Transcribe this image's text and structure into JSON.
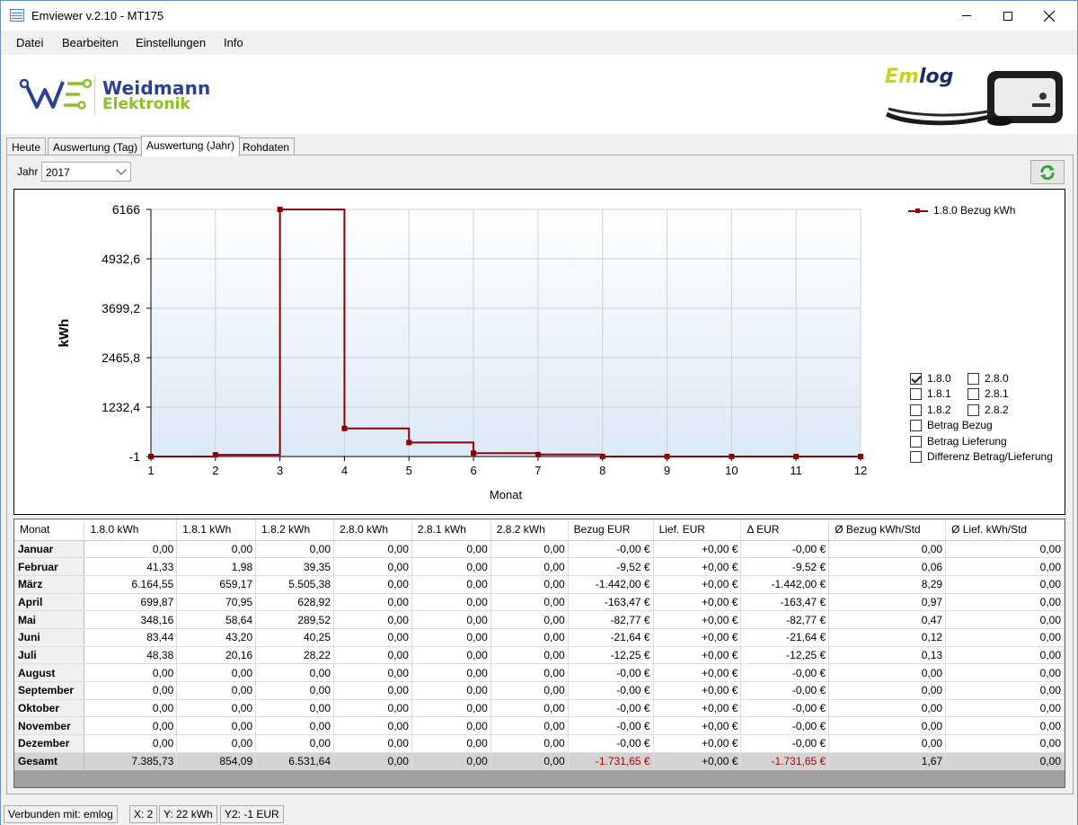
{
  "window": {
    "title": "Emviewer v.2.10 - MT175"
  },
  "menu": [
    "Datei",
    "Bearbeiten",
    "Einstellungen",
    "Info"
  ],
  "brand": {
    "line1": "Weidmann",
    "line2": "Elektronik",
    "emlog_em": "Em",
    "emlog_log": "log"
  },
  "tabs": [
    "Heute",
    "Auswertung (Tag)",
    "Auswertung (Jahr)",
    "Rohdaten"
  ],
  "active_tab": "Auswertung (Jahr)",
  "filter": {
    "year_label": "Jahr",
    "year_value": "2017"
  },
  "chart_data": {
    "type": "line",
    "step": true,
    "xlabel": "Monat",
    "ylabel": "kWh",
    "x": [
      1,
      2,
      3,
      4,
      5,
      6,
      7,
      8,
      9,
      10,
      11,
      12
    ],
    "yticks": [
      "-1",
      "1232,4",
      "2465,8",
      "3699,2",
      "4932,6",
      "6166"
    ],
    "ylim": [
      -1,
      6166
    ],
    "grid": true,
    "legend_position": "top-right",
    "series": [
      {
        "name": "1.8.0 Bezug kWh",
        "color": "#8b0000",
        "values": [
          0.0,
          41.33,
          6164.55,
          699.87,
          348.16,
          83.44,
          48.38,
          0.0,
          0.0,
          0.0,
          0.0,
          0.0
        ]
      }
    ]
  },
  "checkboxes": [
    {
      "label": "1.8.0",
      "checked": true
    },
    {
      "label": "2.8.0",
      "checked": false
    },
    {
      "label": "1.8.1",
      "checked": false
    },
    {
      "label": "2.8.1",
      "checked": false
    },
    {
      "label": "1.8.2",
      "checked": false
    },
    {
      "label": "2.8.2",
      "checked": false
    },
    {
      "label": "Betrag Bezug",
      "checked": false
    },
    {
      "label": "Betrag Lieferung",
      "checked": false
    },
    {
      "label": "Differenz Betrag/Lieferung",
      "checked": false
    }
  ],
  "table": {
    "headers": [
      "Monat",
      "1.8.0 kWh",
      "1.8.1 kWh",
      "1.8.2 kWh",
      "2.8.0 kWh",
      "2.8.1 kWh",
      "2.8.2 kWh",
      "Bezug EUR",
      "Lief. EUR",
      "Δ EUR",
      "Ø Bezug kWh/Std",
      "Ø Lief. kWh/Std"
    ],
    "rows": [
      [
        "Januar",
        "0,00",
        "0,00",
        "0,00",
        "0,00",
        "0,00",
        "0,00",
        "-0,00 €",
        "+0,00 €",
        "-0,00 €",
        "0,00",
        "0,00"
      ],
      [
        "Februar",
        "41,33",
        "1,98",
        "39,35",
        "0,00",
        "0,00",
        "0,00",
        "-9,52 €",
        "+0,00 €",
        "-9,52 €",
        "0,06",
        "0,00"
      ],
      [
        "März",
        "6.164,55",
        "659,17",
        "5.505,38",
        "0,00",
        "0,00",
        "0,00",
        "-1.442,00 €",
        "+0,00 €",
        "-1.442,00 €",
        "8,29",
        "0,00"
      ],
      [
        "April",
        "699,87",
        "70,95",
        "628,92",
        "0,00",
        "0,00",
        "0,00",
        "-163,47 €",
        "+0,00 €",
        "-163,47 €",
        "0,97",
        "0,00"
      ],
      [
        "Mai",
        "348,16",
        "58,64",
        "289,52",
        "0,00",
        "0,00",
        "0,00",
        "-82,77 €",
        "+0,00 €",
        "-82,77 €",
        "0,47",
        "0,00"
      ],
      [
        "Juni",
        "83,44",
        "43,20",
        "40,25",
        "0,00",
        "0,00",
        "0,00",
        "-21,64 €",
        "+0,00 €",
        "-21,64 €",
        "0,12",
        "0,00"
      ],
      [
        "Juli",
        "48,38",
        "20,16",
        "28,22",
        "0,00",
        "0,00",
        "0,00",
        "-12,25 €",
        "+0,00 €",
        "-12,25 €",
        "0,13",
        "0,00"
      ],
      [
        "August",
        "0,00",
        "0,00",
        "0,00",
        "0,00",
        "0,00",
        "0,00",
        "-0,00 €",
        "+0,00 €",
        "-0,00 €",
        "0,00",
        "0,00"
      ],
      [
        "September",
        "0,00",
        "0,00",
        "0,00",
        "0,00",
        "0,00",
        "0,00",
        "-0,00 €",
        "+0,00 €",
        "-0,00 €",
        "0,00",
        "0,00"
      ],
      [
        "Oktober",
        "0,00",
        "0,00",
        "0,00",
        "0,00",
        "0,00",
        "0,00",
        "-0,00 €",
        "+0,00 €",
        "-0,00 €",
        "0,00",
        "0,00"
      ],
      [
        "November",
        "0,00",
        "0,00",
        "0,00",
        "0,00",
        "0,00",
        "0,00",
        "-0,00 €",
        "+0,00 €",
        "-0,00 €",
        "0,00",
        "0,00"
      ],
      [
        "Dezember",
        "0,00",
        "0,00",
        "0,00",
        "0,00",
        "0,00",
        "0,00",
        "-0,00 €",
        "+0,00 €",
        "-0,00 €",
        "0,00",
        "0,00"
      ]
    ],
    "total": [
      "Gesamt",
      "7.385,73",
      "854,09",
      "6.531,64",
      "0,00",
      "0,00",
      "0,00",
      "-1.731,65 €",
      "+0,00 €",
      "-1.731,65 €",
      "1,67",
      "0,00"
    ],
    "negative_color": "#b00000"
  },
  "status": [
    "Verbunden mit: emlog",
    "X: 2",
    "Y: 22 kWh",
    "Y2: -1 EUR"
  ]
}
